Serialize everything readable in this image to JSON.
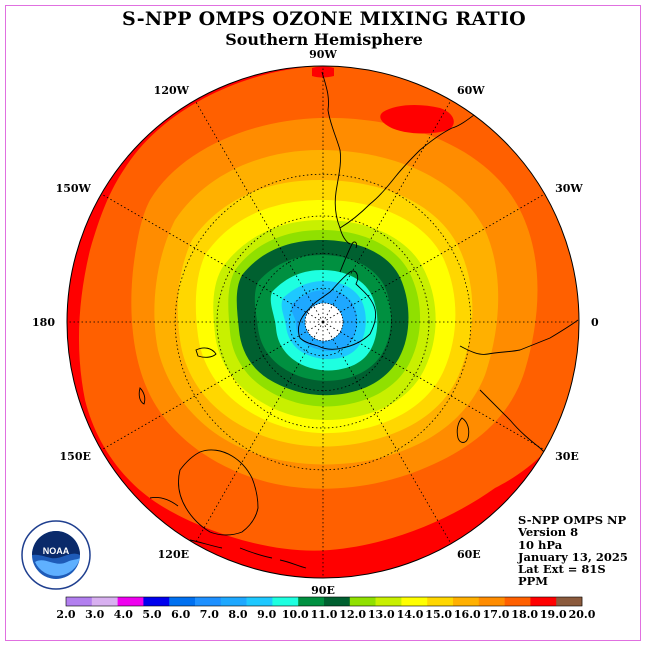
{
  "title": "S-NPP OMPS OZONE MIXING RATIO",
  "subtitle": "Southern Hemisphere",
  "map": {
    "projection": "south polar stereographic",
    "longitude_labels": [
      {
        "text": "90W",
        "lon": -90
      },
      {
        "text": "60W",
        "lon": -60
      },
      {
        "text": "30W",
        "lon": -30
      },
      {
        "text": "0",
        "lon": 0
      },
      {
        "text": "30E",
        "lon": 30
      },
      {
        "text": "60E",
        "lon": 60
      },
      {
        "text": "90E",
        "lon": 90
      },
      {
        "text": "120E",
        "lon": 120
      },
      {
        "text": "150E",
        "lon": 150
      },
      {
        "text": "180",
        "lon": 180
      },
      {
        "text": "150W",
        "lon": -150
      },
      {
        "text": "120W",
        "lon": -120
      }
    ],
    "latitude_circles": [
      -30,
      -45,
      -60,
      -75
    ]
  },
  "info": {
    "line1": "S-NPP OMPS NP",
    "line2": "Version 8",
    "line3": "10 hPa",
    "line4": "January 13, 2025",
    "line5": "Lat Ext = 81S",
    "line6": "PPM"
  },
  "colorbar": {
    "labels": [
      "2.0",
      "3.0",
      "4.0",
      "5.0",
      "6.0",
      "7.0",
      "8.0",
      "9.0",
      "10.0",
      "11.0",
      "12.0",
      "13.0",
      "14.0",
      "15.0",
      "16.0",
      "17.0",
      "18.0",
      "19.0",
      "20.0"
    ],
    "colors": [
      "#b27fef",
      "#d8b0f0",
      "#ef00ef",
      "#0000ee",
      "#0070f0",
      "#1e90ff",
      "#1ea8ff",
      "#1ec8ff",
      "#1effe0",
      "#009040",
      "#006030",
      "#90e000",
      "#c8f000",
      "#ffff00",
      "#ffd700",
      "#ffb000",
      "#ff8c00",
      "#ff6000",
      "#ff0000",
      "#8b5a3c"
    ]
  },
  "logo": {
    "text": "NOAA",
    "ring_text": "NATIONAL OCEANIC AND ATMOSPHERIC ADMINISTRATION U.S. DEPARTMENT OF COMMERCE"
  }
}
